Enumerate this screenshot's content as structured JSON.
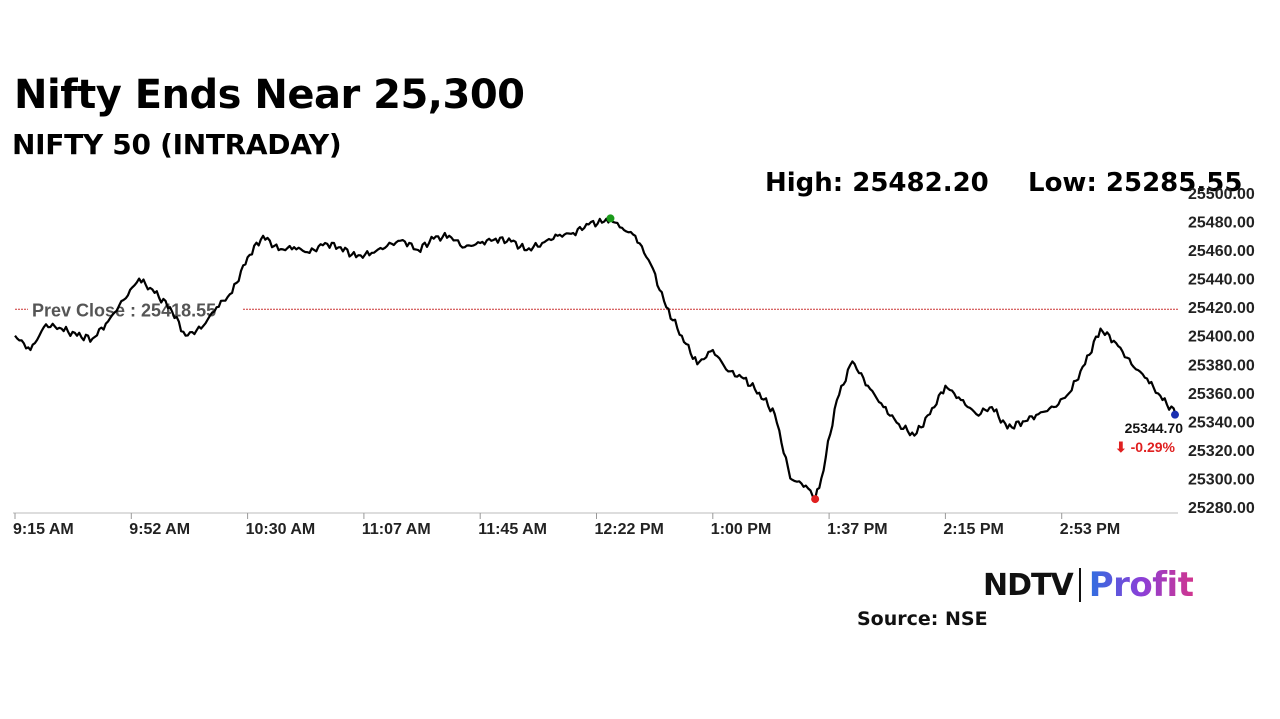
{
  "header": {
    "title": "Nifty Ends Near 25,300",
    "subtitle": "NIFTY 50 (INTRADAY)",
    "high_text": "High: 25482.20",
    "low_text": "Low: 25285.55"
  },
  "footer": {
    "source": "Source: NSE",
    "logo_left": "NDTV",
    "logo_right": "Profit"
  },
  "colors": {
    "line": "#000000",
    "prev_close": "#cc3333",
    "high_marker": "#1a9a1a",
    "low_marker": "#e02020",
    "last_marker": "#1a2fb0",
    "change": "#e02020"
  },
  "chart_data": {
    "type": "line",
    "x_ticks": [
      "9:15 AM",
      "9:52 AM",
      "10:30 AM",
      "11:07 AM",
      "11:45 AM",
      "12:22 PM",
      "1:00 PM",
      "1:37 PM",
      "2:15 PM",
      "2:53 PM"
    ],
    "y_ticks": [
      "25280.00",
      "25300.00",
      "25320.00",
      "25340.00",
      "25360.00",
      "25380.00",
      "25400.00",
      "25420.00",
      "25440.00",
      "25460.00",
      "25480.00",
      "25500.00"
    ],
    "ylim": [
      25280,
      25500
    ],
    "x_start": "9:15 AM",
    "x_end": "3:30 PM",
    "prev_close_label": "Prev Close : 25418.55",
    "prev_close": 25418.55,
    "high": {
      "time": "12:27 PM",
      "value": 25482.2
    },
    "low": {
      "time": "1:33 PM",
      "value": 25285.55
    },
    "last": {
      "time": "3:30 PM",
      "value": 25344.7,
      "label": "25344.70",
      "change_label": "⬇ -0.29%"
    },
    "series": [
      {
        "x": [
          "9:15 AM",
          "9:20 AM",
          "9:25 AM",
          "9:30 AM",
          "9:35 AM",
          "9:40 AM",
          "9:45 AM",
          "9:50 AM",
          "9:55 AM",
          "10:00 AM",
          "10:05 AM",
          "10:10 AM",
          "10:15 AM",
          "10:20 AM",
          "10:25 AM",
          "10:30 AM",
          "10:35 AM",
          "10:40 AM",
          "10:45 AM",
          "10:50 AM",
          "10:55 AM",
          "11:00 AM",
          "11:05 AM",
          "11:10 AM",
          "11:15 AM",
          "11:20 AM",
          "11:25 AM",
          "11:30 AM",
          "11:35 AM",
          "11:40 AM",
          "11:45 AM",
          "11:50 AM",
          "11:55 AM",
          "12:00 PM",
          "12:05 PM",
          "12:10 PM",
          "12:15 PM",
          "12:20 PM",
          "12:25 PM",
          "12:27 PM",
          "12:30 PM",
          "12:35 PM",
          "12:40 PM",
          "12:45 PM",
          "12:50 PM",
          "12:55 PM",
          "1:00 PM",
          "1:05 PM",
          "1:10 PM",
          "1:15 PM",
          "1:20 PM",
          "1:25 PM",
          "1:30 PM",
          "1:33 PM",
          "1:35 PM",
          "1:40 PM",
          "1:45 PM",
          "1:50 PM",
          "1:55 PM",
          "2:00 PM",
          "2:05 PM",
          "2:10 PM",
          "2:15 PM",
          "2:20 PM",
          "2:25 PM",
          "2:30 PM",
          "2:35 PM",
          "2:40 PM",
          "2:45 PM",
          "2:50 PM",
          "2:55 PM",
          "3:00 PM",
          "3:05 PM",
          "3:10 PM",
          "3:15 PM",
          "3:20 PM",
          "3:25 PM",
          "3:30 PM"
        ],
        "values": [
          25400,
          25390,
          25408,
          25405,
          25400,
          25398,
          25410,
          25425,
          25440,
          25430,
          25420,
          25400,
          25405,
          25420,
          25430,
          25455,
          25470,
          25460,
          25462,
          25458,
          25465,
          25462,
          25455,
          25458,
          25463,
          25467,
          25460,
          25468,
          25470,
          25462,
          25465,
          25468,
          25466,
          25460,
          25465,
          25470,
          25472,
          25478,
          25480,
          25482.2,
          25476,
          25470,
          25450,
          25420,
          25400,
          25380,
          25390,
          25375,
          25370,
          25360,
          25345,
          25300,
          25295,
          25285.55,
          25300,
          25355,
          25382,
          25365,
          25350,
          25338,
          25330,
          25345,
          25365,
          25355,
          25345,
          25350,
          25335,
          25340,
          25345,
          25350,
          25360,
          25380,
          25405,
          25395,
          25380,
          25370,
          25355,
          25344.7
        ]
      }
    ]
  }
}
